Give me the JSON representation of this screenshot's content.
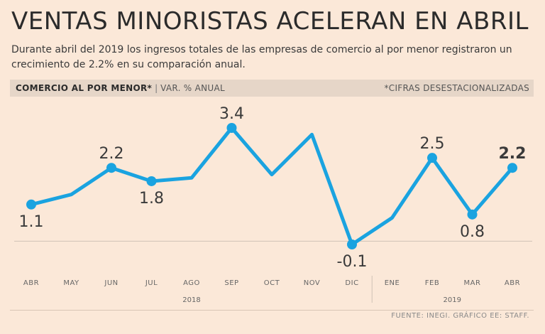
{
  "header": {
    "title": "VENTAS MINORISTAS ACELERAN EN ABRIL",
    "subtitle": "Durante abril del 2019 los ingresos totales de las empresas de comercio al por menor registraron un crecimiento de 2.2% en su comparación anual."
  },
  "bar": {
    "label": "COMERCIO AL POR MENOR*",
    "separator": "|",
    "unit": "VAR. % ANUAL",
    "note": "*CIFRAS DESESTACIONALIZADAS"
  },
  "source": "FUENTE: INEGI. GRÁFICO EE: STAFF.",
  "colors": {
    "background": "#fbe8d8",
    "line": "#1aa3e0",
    "axis": "#cfc2b6",
    "text": "#3a3a3a"
  },
  "chart_data": {
    "type": "line",
    "title": "COMERCIO AL POR MENOR*",
    "ylabel": "VAR. % ANUAL",
    "categories": [
      "ABR",
      "MAY",
      "JUN",
      "JUL",
      "AGO",
      "SEP",
      "OCT",
      "NOV",
      "DIC",
      "ENE",
      "FEB",
      "MAR",
      "ABR"
    ],
    "year_groups": [
      {
        "label": "2018",
        "from": 0,
        "to": 8
      },
      {
        "label": "2019",
        "from": 9,
        "to": 12
      }
    ],
    "series": [
      {
        "name": "Var. % anual",
        "values": [
          1.1,
          1.4,
          2.2,
          1.8,
          1.9,
          3.4,
          2.0,
          3.2,
          -0.1,
          0.7,
          2.5,
          0.8,
          2.2
        ]
      }
    ],
    "point_labels": [
      {
        "index": 0,
        "text": "1.1",
        "pos": "below"
      },
      {
        "index": 2,
        "text": "2.2",
        "pos": "above"
      },
      {
        "index": 3,
        "text": "1.8",
        "pos": "below"
      },
      {
        "index": 5,
        "text": "3.4",
        "pos": "above"
      },
      {
        "index": 8,
        "text": "-0.1",
        "pos": "below"
      },
      {
        "index": 10,
        "text": "2.5",
        "pos": "above"
      },
      {
        "index": 11,
        "text": "0.8",
        "pos": "below"
      },
      {
        "index": 12,
        "text": "2.2",
        "pos": "above",
        "bold": true
      }
    ],
    "marker_indices": [
      0,
      2,
      3,
      5,
      8,
      10,
      11,
      12
    ],
    "baseline": 0,
    "ylim": [
      -0.1,
      3.4
    ]
  }
}
